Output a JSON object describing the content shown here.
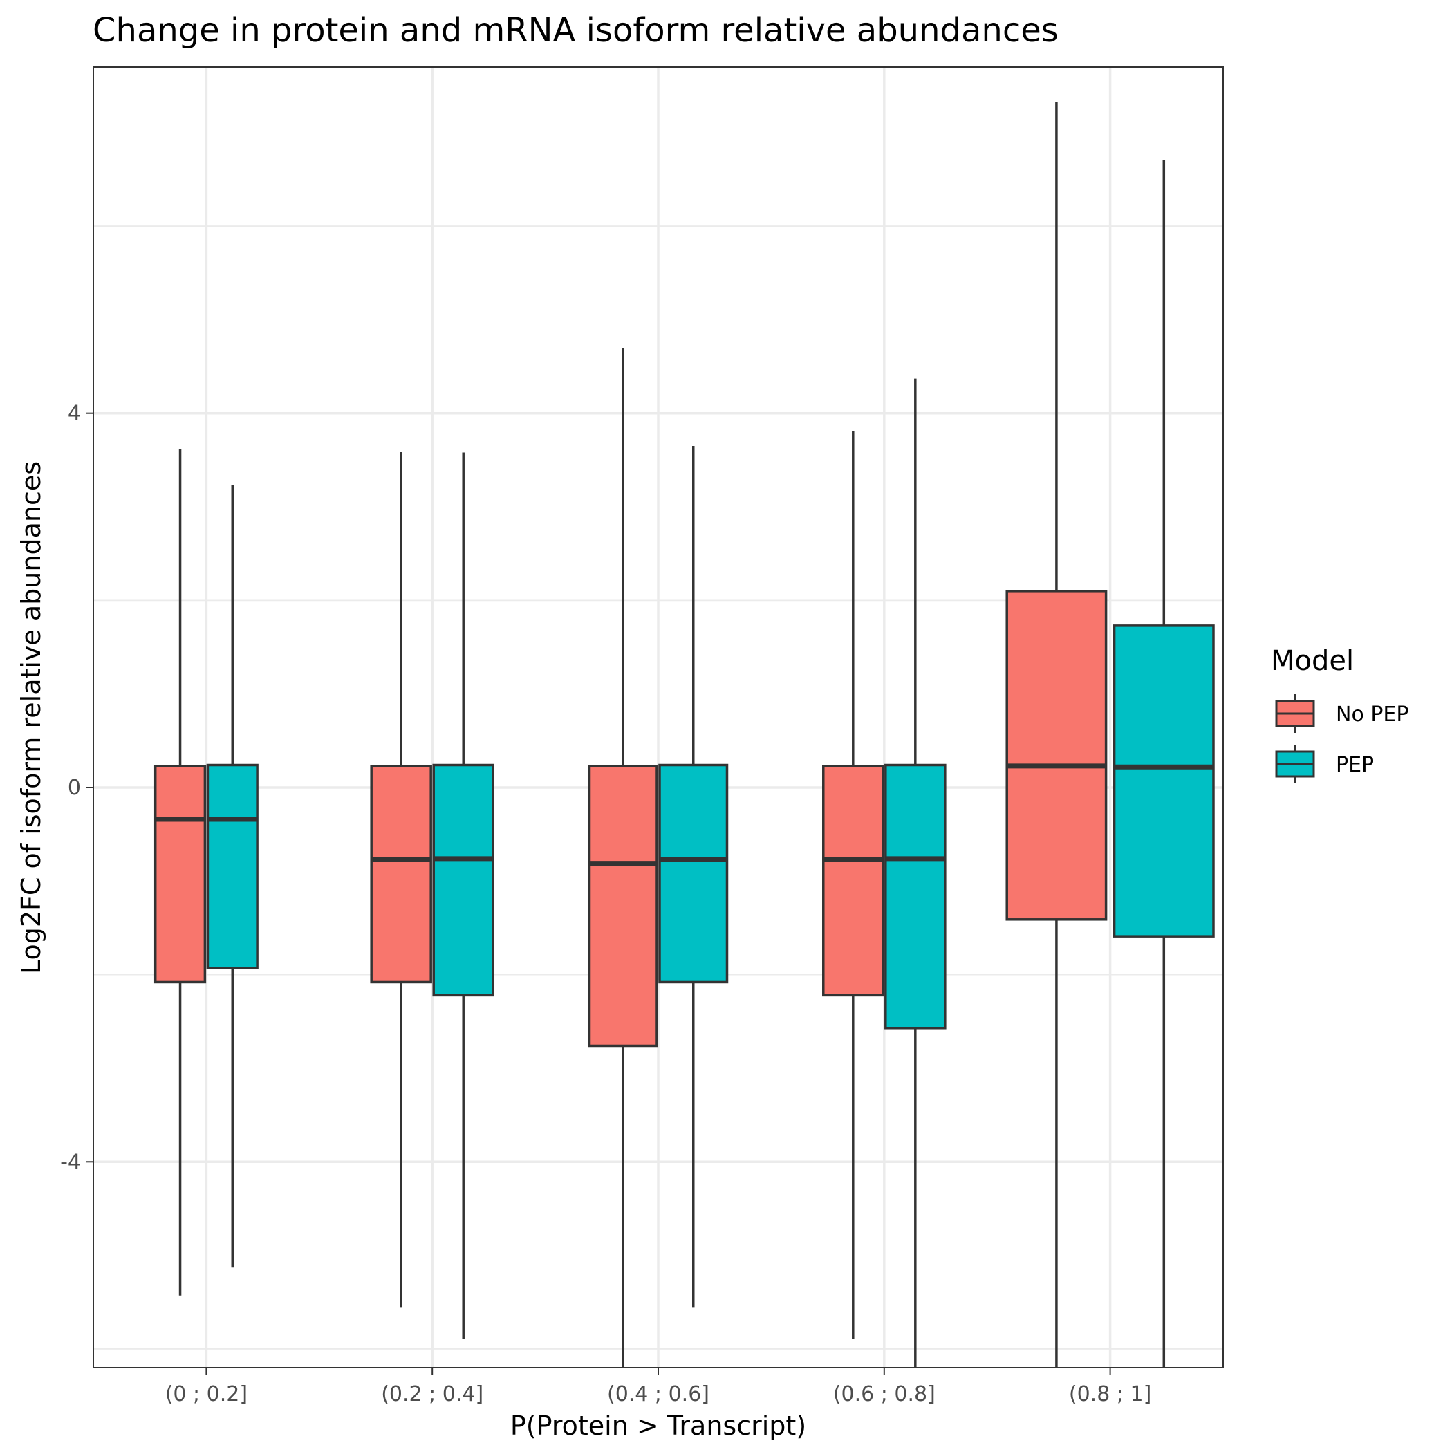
{
  "chart_data": {
    "type": "boxplot",
    "title": "Change in protein and mRNA isoform relative abundances",
    "xlabel": "P(Protein > Transcript)",
    "ylabel": "Log2FC of isoform relative abundances",
    "ylim": [
      -6.2,
      7.7
    ],
    "yticks": [
      -4,
      0,
      4
    ],
    "ytick_labels": [
      "-4",
      "0",
      "4"
    ],
    "grid": true,
    "categories": [
      "(0 ; 0.2]",
      "(0.2 ; 0.4]",
      "(0.4 ; 0.6]",
      "(0.6 ; 0.8]",
      "(0.8 ; 1]"
    ],
    "legend": {
      "title": "Model",
      "position": "right",
      "entries": [
        "No PEP",
        "PEP"
      ]
    },
    "series": [
      {
        "name": "No PEP",
        "color": "#F8766D",
        "boxes": [
          {
            "whisker_low": -5.43,
            "q1": -2.08,
            "median": -0.34,
            "q3": 0.23,
            "whisker_high": 3.62
          },
          {
            "whisker_low": -5.56,
            "q1": -2.08,
            "median": -0.77,
            "q3": 0.23,
            "whisker_high": 3.59
          },
          {
            "whisker_low": -6.2,
            "q1": -2.76,
            "median": -0.81,
            "q3": 0.23,
            "whisker_high": 4.7
          },
          {
            "whisker_low": -5.89,
            "q1": -2.22,
            "median": -0.77,
            "q3": 0.23,
            "whisker_high": 3.81
          },
          {
            "whisker_low": -6.2,
            "q1": -1.41,
            "median": 0.23,
            "q3": 2.1,
            "whisker_high": 7.33
          }
        ]
      },
      {
        "name": "PEP",
        "color": "#00BFC4",
        "boxes": [
          {
            "whisker_low": -5.13,
            "q1": -1.93,
            "median": -0.34,
            "q3": 0.24,
            "whisker_high": 3.23
          },
          {
            "whisker_low": -5.89,
            "q1": -2.22,
            "median": -0.76,
            "q3": 0.24,
            "whisker_high": 3.58
          },
          {
            "whisker_low": -5.56,
            "q1": -2.08,
            "median": -0.77,
            "q3": 0.24,
            "whisker_high": 3.65
          },
          {
            "whisker_low": -6.2,
            "q1": -2.57,
            "median": -0.76,
            "q3": 0.24,
            "whisker_high": 4.37
          },
          {
            "whisker_low": -6.2,
            "q1": -1.59,
            "median": 0.22,
            "q3": 1.73,
            "whisker_high": 6.71
          }
        ]
      }
    ]
  }
}
